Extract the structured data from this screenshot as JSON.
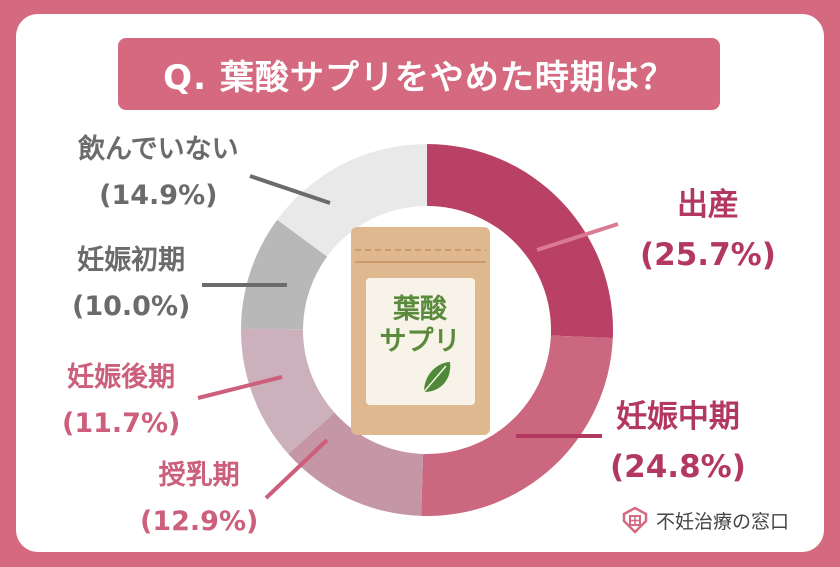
{
  "title": "Q. 葉酸サプリをやめた時期は？",
  "center_image": {
    "label_line1": "葉酸",
    "label_line2": "サプリ",
    "icon": "leaf-icon"
  },
  "logo": {
    "text": "不妊治療の窓口",
    "icon": "house-heart-icon"
  },
  "colors": {
    "frame": "#d4697f",
    "shussan": "#b94166",
    "chuki": "#cc6780",
    "junyu": "#c496a6",
    "koki": "#ccb1bc",
    "shoki": "#b8b8b8",
    "none": "#e9e9e9"
  },
  "labels": {
    "shussan": {
      "name": "出産",
      "pct": "(25.7%)"
    },
    "chuki": {
      "name": "妊娠中期",
      "pct": "(24.8%)"
    },
    "junyu": {
      "name": "授乳期",
      "pct": "(12.9%)"
    },
    "koki": {
      "name": "妊娠後期",
      "pct": "(11.7%)"
    },
    "shoki": {
      "name": "妊娠初期",
      "pct": "(10.0%)"
    },
    "none": {
      "name": "飲んでいない",
      "pct": "(14.9%)"
    }
  },
  "chart_data": {
    "type": "pie",
    "title": "Q. 葉酸サプリをやめた時期は？",
    "donut": true,
    "start_angle": "12 o'clock, clockwise",
    "categories": [
      "出産",
      "妊娠中期",
      "授乳期",
      "妊娠後期",
      "妊娠初期",
      "飲んでいない"
    ],
    "values": [
      25.7,
      24.8,
      12.9,
      11.7,
      10.0,
      14.9
    ],
    "unit": "%",
    "colors": [
      "#b94166",
      "#cc6780",
      "#c496a6",
      "#ccb1bc",
      "#b8b8b8",
      "#e9e9e9"
    ]
  }
}
